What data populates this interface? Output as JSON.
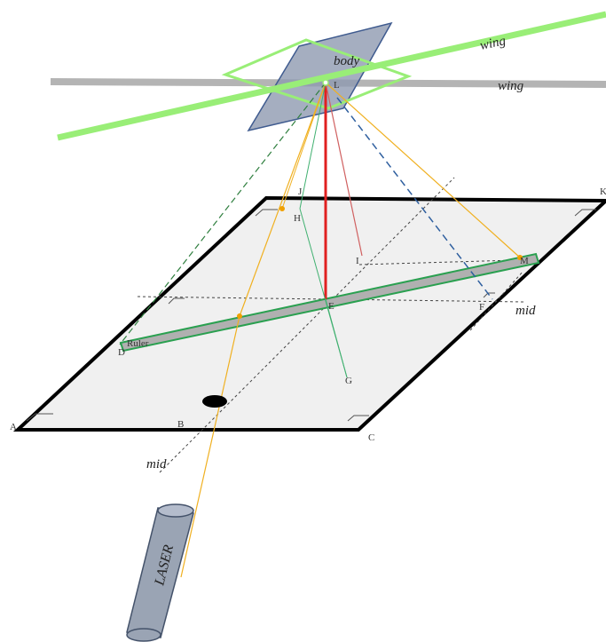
{
  "labels": {
    "wing_top": "wing",
    "wing_mid": "wing",
    "body": "body",
    "mid_right": "mid",
    "mid_bottom": "mid",
    "ruler": "Ruler",
    "laser": "LASER"
  },
  "points": {
    "A": "A",
    "B": "B",
    "C": "C",
    "D": "D",
    "E": "E",
    "F": "F",
    "G": "G",
    "H": "H",
    "I": "I",
    "J": "J",
    "K": "K",
    "L": "L",
    "M": "M"
  },
  "colors": {
    "wing_green": "#99ee77",
    "wing_gray": "#b4b4b4",
    "body_fill": "#8e9ab0",
    "body_outline": "#3f5b8f",
    "plane_fill": "#f0f0f0",
    "ruler_fill": "#b0b0b0",
    "ruler_outline": "#2aa050",
    "laser_beam": "#f0b020",
    "red_line": "#e02020",
    "thin_red": "#d06060",
    "green_line": "#40b070",
    "blue_dash": "#2f5f9f",
    "green_dash": "#2f7f3f"
  },
  "icons": {
    "laser_device": "laser-cylinder",
    "hole": "black-ellipse"
  }
}
